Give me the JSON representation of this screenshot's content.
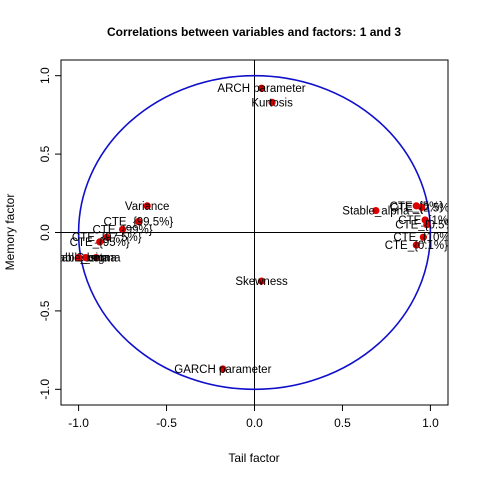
{
  "chart_data": {
    "type": "scatter",
    "title": "Correlations between variables and factors: 1 and 3",
    "xlabel": "Tail factor",
    "ylabel": "Memory factor",
    "xlim": [
      -1.1,
      1.1
    ],
    "ylim": [
      -1.1,
      1.1
    ],
    "x_ticks": [
      -1.0,
      -0.5,
      0.0,
      0.5,
      1.0
    ],
    "x_tick_labels": [
      "-1.0",
      "-0.5",
      "0.0",
      "0.5",
      "1.0"
    ],
    "y_ticks": [
      -1.0,
      -0.5,
      0.0,
      0.5,
      1.0
    ],
    "y_tick_labels": [
      "-1.0",
      "-0.5",
      "0.0",
      "0.5",
      "1.0"
    ],
    "grid": false,
    "unit_circle": true,
    "colors": {
      "circle": "#1010cc",
      "point": "#dd0000",
      "axis": "#000000"
    },
    "points": [
      {
        "x": 0.04,
        "y": 0.92,
        "label": "ARCH parameter"
      },
      {
        "x": 0.1,
        "y": 0.83,
        "label": "Kurtosis"
      },
      {
        "x": -0.61,
        "y": 0.17,
        "label": "Variance"
      },
      {
        "x": -0.66,
        "y": 0.07,
        "label": "CTE_{99.5%}"
      },
      {
        "x": -0.75,
        "y": 0.02,
        "label": "CTE_{99%}"
      },
      {
        "x": -0.84,
        "y": -0.03,
        "label": "CTE_{97.5%}"
      },
      {
        "x": -0.88,
        "y": -0.06,
        "label": "CTE_{95%}"
      },
      {
        "x": -0.9,
        "y": -0.16,
        "label": "Gamma"
      },
      {
        "x": -0.96,
        "y": -0.16,
        "label": "Stable_sigma"
      },
      {
        "x": -1.0,
        "y": -0.16,
        "label": "Stable_beta"
      },
      {
        "x": 0.69,
        "y": 0.14,
        "label": "Stable_alpha"
      },
      {
        "x": 0.92,
        "y": 0.17,
        "label": "CTE_{5%}"
      },
      {
        "x": 0.95,
        "y": 0.16,
        "label": "CTE_{2.5%}"
      },
      {
        "x": 0.97,
        "y": 0.08,
        "label": "CTE_{1%}"
      },
      {
        "x": 0.98,
        "y": 0.05,
        "label": "CTE_{0.5%}"
      },
      {
        "x": 0.96,
        "y": -0.03,
        "label": "CTE_{10%}"
      },
      {
        "x": 0.92,
        "y": -0.08,
        "label": "CTE_{0.1%}"
      },
      {
        "x": 0.04,
        "y": -0.31,
        "label": "Skewness"
      },
      {
        "x": -0.18,
        "y": -0.87,
        "label": "GARCH parameter"
      }
    ]
  }
}
